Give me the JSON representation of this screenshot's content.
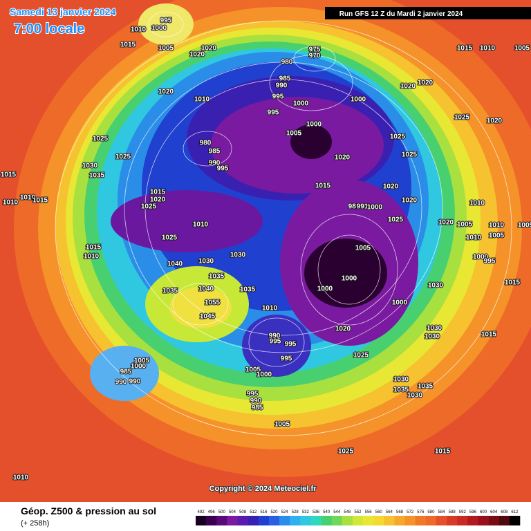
{
  "header": {
    "date": "Samedi 13 janvier 2024",
    "time": "7:00 locale",
    "run": "Run GFS 12 Z du Mardi 2 janvier 2024"
  },
  "isobar_labels": [
    995,
    1000,
    1010,
    1015,
    1005,
    1020,
    1020,
    975,
    970,
    980,
    985,
    990,
    995,
    1000,
    995,
    1000,
    1020,
    1020,
    1015,
    1010,
    1005,
    1020,
    1010,
    980,
    985,
    990,
    995,
    1005,
    1000,
    1020,
    1025,
    1025,
    1025,
    1020,
    1020,
    1020,
    1025,
    1025,
    1030,
    1035,
    1015,
    1010,
    1015,
    1010,
    1015,
    1020,
    1025,
    1015,
    989,
    991,
    1000,
    1025,
    1010,
    1025,
    1020,
    1005,
    1010,
    1010,
    1005,
    1005,
    1010,
    1015,
    1010,
    1005,
    1000,
    995,
    1040,
    1030,
    1030,
    1035,
    1015,
    1030,
    1000,
    1000,
    1000,
    1035,
    1035,
    1040,
    1055,
    1045,
    1010,
    1020,
    990,
    995,
    995,
    1030,
    1030,
    1015,
    1025,
    995,
    1005,
    1000,
    985,
    990,
    990,
    1005,
    1000,
    1030,
    1035,
    1035,
    1030,
    995,
    990,
    985,
    1005,
    1025,
    1015,
    1010
  ],
  "copyright": "Copyright © 2024 Meteociel.fr",
  "legend": {
    "title": "Géop. Z500 & pression au sol",
    "lead": "(+ 258h)",
    "scale": [
      492,
      496,
      500,
      504,
      508,
      512,
      516,
      520,
      524,
      528,
      532,
      536,
      540,
      544,
      548,
      552,
      556,
      560,
      564,
      568,
      572,
      576,
      580,
      584,
      588,
      592,
      596,
      600,
      604,
      608,
      612
    ]
  }
}
